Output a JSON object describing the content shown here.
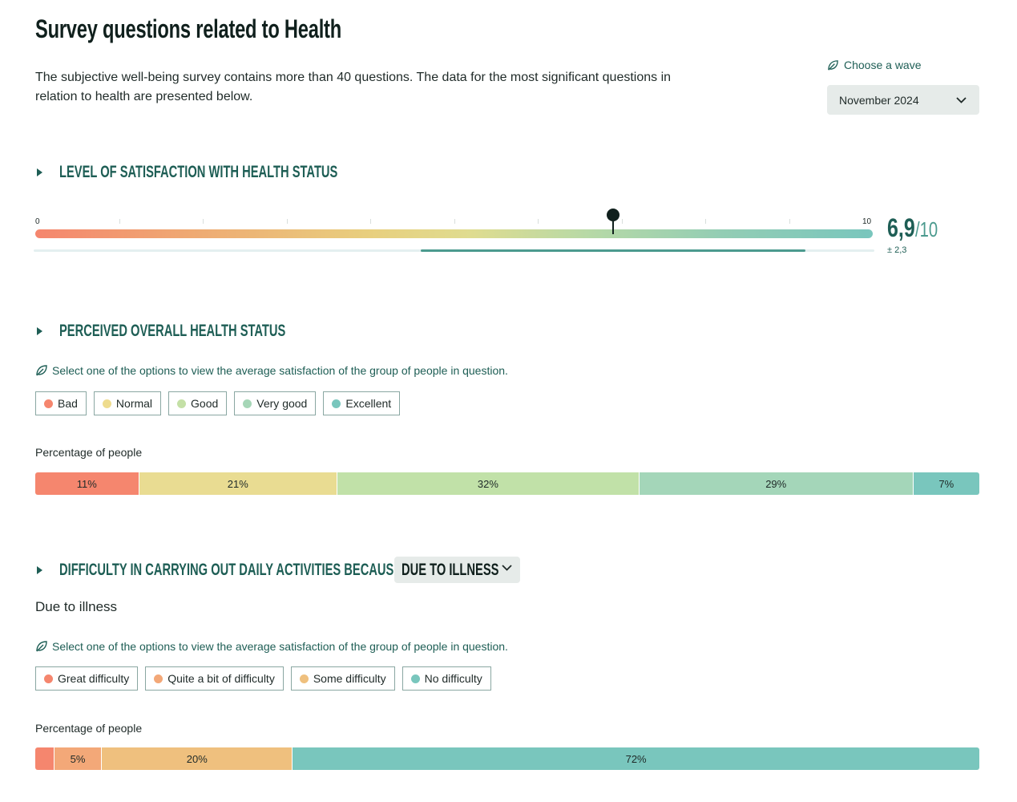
{
  "page": {
    "title": "Survey questions related to Health",
    "intro": "The subjective well-being survey contains more than 40 questions. The data for the most significant questions in relation to health are presented below."
  },
  "wave": {
    "label": "Choose a wave",
    "selected": "November 2024",
    "icon": "leaf-icon"
  },
  "satisfaction": {
    "title": "LEVEL OF SATISFACTION WITH HEALTH STATUS",
    "min_label": "0",
    "max_label": "10",
    "value": 6.9,
    "value_label": "6,9",
    "max_suffix": "/10",
    "sd_label": "± 2,3",
    "sd_range": [
      4.6,
      9.2
    ],
    "gradient_colors": [
      "#f5866e",
      "#e8cf7e",
      "#79c6bd"
    ]
  },
  "perceived": {
    "title": "PERCEIVED OVERALL HEALTH STATUS",
    "hint": "Select one of the options to view the average satisfaction of the group of people in question.",
    "options": [
      {
        "label": "Bad",
        "color": "#f5866e"
      },
      {
        "label": "Normal",
        "color": "#eedc8e"
      },
      {
        "label": "Good",
        "color": "#c4e0a6"
      },
      {
        "label": "Very good",
        "color": "#a6d6b7"
      },
      {
        "label": "Excellent",
        "color": "#79c6bd"
      }
    ],
    "pct_label": "Percentage of people",
    "distribution": [
      {
        "label": "11%",
        "value": 11,
        "color": "#f5866e"
      },
      {
        "label": "21%",
        "value": 21,
        "color": "#e9dc92"
      },
      {
        "label": "32%",
        "value": 32,
        "color": "#c1e1a8"
      },
      {
        "label": "29%",
        "value": 29,
        "color": "#a4d6b9"
      },
      {
        "label": "7%",
        "value": 7,
        "color": "#79c6bd"
      }
    ]
  },
  "difficulty": {
    "title": "DIFFICULTY IN CARRYING OUT DAILY ACTIVITIES BECAUSE OF",
    "select_value": "DUE TO ILLNESS",
    "subtitle": "Due to illness",
    "hint": "Select one of the options to view the average satisfaction of the group of people in question.",
    "options": [
      {
        "label": "Great difficulty",
        "color": "#f5866e"
      },
      {
        "label": "Quite a bit of difficulty",
        "color": "#f3a878"
      },
      {
        "label": "Some difficulty",
        "color": "#efc07e"
      },
      {
        "label": "No difficulty",
        "color": "#79c6bd"
      }
    ],
    "pct_label": "Percentage of people",
    "distribution": [
      {
        "label": "",
        "value": 2,
        "color": "#f5866e"
      },
      {
        "label": "5%",
        "value": 5,
        "color": "#f3a878"
      },
      {
        "label": "20%",
        "value": 20,
        "color": "#efc07e"
      },
      {
        "label": "72%",
        "value": 72,
        "color": "#79c6bd"
      }
    ]
  }
}
